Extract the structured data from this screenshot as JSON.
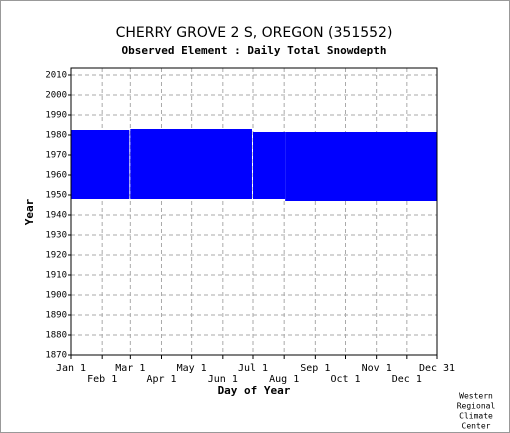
{
  "chart_data": {
    "type": "coverage",
    "title": "CHERRY GROVE 2 S, OREGON   (351552)",
    "subtitle": "Observed Element : Daily Total Snowdepth",
    "x_label": "Day of Year",
    "y_label": "Year",
    "credit": [
      "Western",
      "Regional",
      "Climate",
      "Center"
    ],
    "color": "#0000ff",
    "grid": true,
    "xlim": [
      1,
      365
    ],
    "ylim": [
      1870,
      2013.5
    ],
    "xticks": [
      {
        "value": 1,
        "label": "Jan 1"
      },
      {
        "value": 32,
        "label": "Feb 1"
      },
      {
        "value": 60,
        "label": "Mar 1"
      },
      {
        "value": 91,
        "label": "Apr 1"
      },
      {
        "value": 121,
        "label": "May 1"
      },
      {
        "value": 152,
        "label": "Jun 1"
      },
      {
        "value": 182,
        "label": "Jul 1"
      },
      {
        "value": 213,
        "label": "Aug 1"
      },
      {
        "value": 244,
        "label": "Sep 1"
      },
      {
        "value": 274,
        "label": "Oct 1"
      },
      {
        "value": 305,
        "label": "Nov 1"
      },
      {
        "value": 335,
        "label": "Dec 1"
      },
      {
        "value": 365,
        "label": "Dec 31"
      }
    ],
    "yticks": [
      1870,
      1880,
      1890,
      1900,
      1910,
      1920,
      1930,
      1940,
      1950,
      1960,
      1970,
      1980,
      1990,
      2000,
      2010
    ],
    "periods": [
      {
        "x": [
          1,
          59
        ],
        "y": [
          1948,
          1982.5
        ]
      },
      {
        "x": [
          60,
          181
        ],
        "y": [
          1948,
          1983
        ]
      },
      {
        "x": [
          182,
          214
        ],
        "y": [
          1948,
          1981.5
        ]
      },
      {
        "x": [
          214,
          365
        ],
        "y": [
          1947,
          1981.5
        ]
      }
    ]
  }
}
